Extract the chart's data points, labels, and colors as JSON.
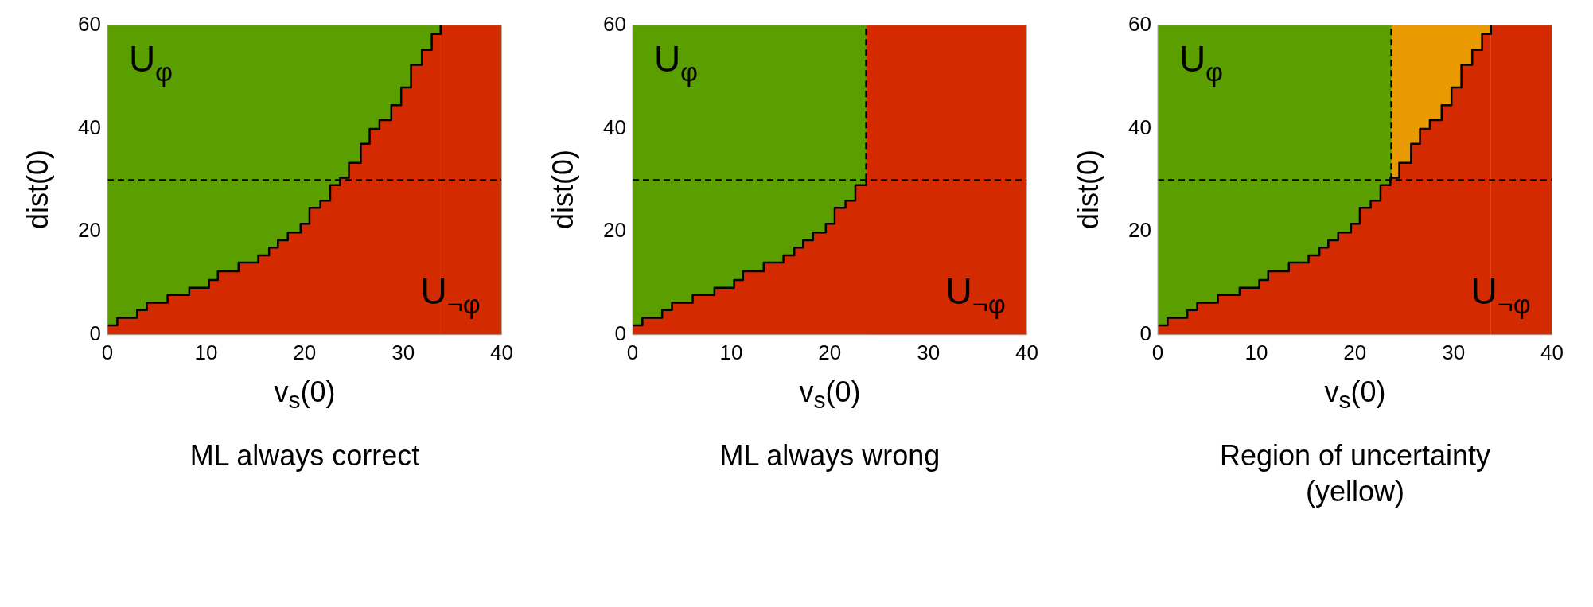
{
  "chart_data": [
    {
      "type": "area",
      "title": "ML always correct",
      "xlabel": "v$_{s}$(0)",
      "ylabel": "dist(0)",
      "xlim": [
        0,
        40
      ],
      "ylim": [
        0,
        60
      ],
      "xticks": [
        0,
        10,
        20,
        30,
        40
      ],
      "yticks": [
        0,
        20,
        40,
        60
      ],
      "legend": false,
      "bands": [
        {
          "axis": "x",
          "from": 0,
          "to": 40,
          "color": "#5a9e00"
        },
        {
          "axis": "x",
          "from": 33.8,
          "to": 40,
          "color": "#d42a00"
        }
      ],
      "series": [
        {
          "color": "#d42a00",
          "x": [
            0,
            1,
            3,
            4,
            6.1,
            8.3,
            10.3,
            11.2,
            13.3,
            15.3,
            16.4,
            17.3,
            18.3,
            19.6,
            20.5,
            21.6,
            22.6,
            23.6,
            24.5,
            25.7,
            26.6,
            27.6,
            28.8,
            29.8,
            30.8,
            31.9,
            32.9,
            33.8
          ],
          "values": [
            1.8,
            3.3,
            4.8,
            6.2,
            7.7,
            9.1,
            10.6,
            12.3,
            14,
            15.4,
            16.9,
            18.3,
            19.8,
            21.5,
            24.6,
            26,
            29,
            30.4,
            33.3,
            37,
            39.9,
            41.6,
            44.5,
            47.9,
            52.3,
            55.2,
            58.3,
            60
          ]
        },
        {
          "type": "step",
          "color": "#000000",
          "x": [
            0,
            1,
            3,
            4,
            6.1,
            8.3,
            10.3,
            11.2,
            13.3,
            15.3,
            16.4,
            17.3,
            18.3,
            19.6,
            20.5,
            21.6,
            22.6,
            23.6,
            24.5,
            25.7,
            26.6,
            27.6,
            28.8,
            29.8,
            30.8,
            31.9,
            32.9,
            33.8
          ],
          "values": [
            1.8,
            3.3,
            4.8,
            6.2,
            7.7,
            9.1,
            10.6,
            12.3,
            14,
            15.4,
            16.9,
            18.3,
            19.8,
            21.5,
            24.6,
            26,
            29,
            30.4,
            33.3,
            37,
            39.9,
            41.6,
            44.5,
            47.9,
            52.3,
            55.2,
            58.3,
            60
          ]
        }
      ],
      "ref_lines": [
        {
          "axis": "y",
          "value": 30,
          "color": "#000000",
          "line_style": "dashed"
        }
      ],
      "annotations": [
        "U$_{φ}$",
        "U$_{¬φ}$"
      ]
    },
    {
      "type": "area",
      "title": "ML always wrong",
      "xlabel": "v$_{s}$(0)",
      "ylabel": "dist(0)",
      "xlim": [
        0,
        40
      ],
      "ylim": [
        0,
        60
      ],
      "xticks": [
        0,
        10,
        20,
        30,
        40
      ],
      "yticks": [
        0,
        20,
        40,
        60
      ],
      "legend": false,
      "bands": [
        {
          "axis": "x",
          "from": 0,
          "to": 40,
          "color": "#5a9e00"
        },
        {
          "axis": "x",
          "from": 23.7,
          "to": 40,
          "color": "#d42a00"
        }
      ],
      "series": [
        {
          "color": "#d42a00",
          "x": [
            0,
            1,
            3,
            4,
            6.1,
            8.3,
            10.3,
            11.2,
            13.3,
            15.3,
            16.4,
            17.3,
            18.3,
            19.6,
            20.5,
            21.6,
            22.6,
            23.7,
            40
          ],
          "values": [
            1.8,
            3.3,
            4.8,
            6.2,
            7.7,
            9.1,
            10.6,
            12.3,
            14,
            15.4,
            16.9,
            18.3,
            19.8,
            21.5,
            24.6,
            26,
            29,
            30,
            30
          ]
        },
        {
          "type": "step",
          "color": "#000000",
          "x": [
            0,
            1,
            3,
            4,
            6.1,
            8.3,
            10.3,
            11.2,
            13.3,
            15.3,
            16.4,
            17.3,
            18.3,
            19.6,
            20.5,
            21.6,
            22.6,
            23.7
          ],
          "values": [
            1.8,
            3.3,
            4.8,
            6.2,
            7.7,
            9.1,
            10.6,
            12.3,
            14,
            15.4,
            16.9,
            18.3,
            19.8,
            21.5,
            24.6,
            26,
            29,
            30
          ]
        },
        {
          "type": "line",
          "color": "#000000",
          "line_style": "dashed",
          "x": [
            23.7,
            23.7
          ],
          "values": [
            30,
            60
          ]
        }
      ],
      "ref_lines": [
        {
          "axis": "y",
          "value": 30,
          "color": "#000000",
          "line_style": "dashed"
        }
      ],
      "annotations": [
        "U$_{φ}$",
        "U$_{¬φ}$"
      ]
    },
    {
      "type": "area",
      "title": "Region of uncertainty (yellow)",
      "xlabel": "v$_{s}$(0)",
      "ylabel": "dist(0)",
      "xlim": [
        0,
        40
      ],
      "ylim": [
        0,
        60
      ],
      "xticks": [
        0,
        10,
        20,
        30,
        40
      ],
      "yticks": [
        0,
        20,
        40,
        60
      ],
      "legend": false,
      "bands": [
        {
          "axis": "x",
          "from": 0,
          "to": 40,
          "color": "#5a9e00"
        },
        {
          "axis": "x",
          "from": 23.7,
          "to": 34,
          "color": "#e89a00"
        },
        {
          "axis": "x",
          "from": 33.8,
          "to": 40,
          "color": "#d42a00"
        }
      ],
      "series": [
        {
          "color": "#d42a00",
          "x": [
            0,
            1,
            3,
            4,
            6.1,
            8.3,
            10.3,
            11.2,
            13.3,
            15.3,
            16.4,
            17.3,
            18.3,
            19.6,
            20.5,
            21.6,
            22.6,
            23.6,
            24.5,
            25.7,
            26.6,
            27.6,
            28.8,
            29.8,
            30.8,
            31.9,
            32.9,
            33.8
          ],
          "values": [
            1.8,
            3.3,
            4.8,
            6.2,
            7.7,
            9.1,
            10.6,
            12.3,
            14,
            15.4,
            16.9,
            18.3,
            19.8,
            21.5,
            24.6,
            26,
            29,
            30.4,
            33.3,
            37,
            39.9,
            41.6,
            44.5,
            47.9,
            52.3,
            55.2,
            58.3,
            60
          ]
        },
        {
          "type": "step",
          "color": "#000000",
          "x": [
            0,
            1,
            3,
            4,
            6.1,
            8.3,
            10.3,
            11.2,
            13.3,
            15.3,
            16.4,
            17.3,
            18.3,
            19.6,
            20.5,
            21.6,
            22.6,
            23.6,
            24.5,
            25.7,
            26.6,
            27.6,
            28.8,
            29.8,
            30.8,
            31.9,
            32.9,
            33.8
          ],
          "values": [
            1.8,
            3.3,
            4.8,
            6.2,
            7.7,
            9.1,
            10.6,
            12.3,
            14,
            15.4,
            16.9,
            18.3,
            19.8,
            21.5,
            24.6,
            26,
            29,
            30.4,
            33.3,
            37,
            39.9,
            41.6,
            44.5,
            47.9,
            52.3,
            55.2,
            58.3,
            60
          ]
        },
        {
          "type": "line",
          "color": "#000000",
          "line_style": "dashed",
          "x": [
            23.7,
            23.7
          ],
          "values": [
            30,
            60
          ]
        }
      ],
      "ref_lines": [
        {
          "axis": "y",
          "value": 30,
          "color": "#000000",
          "line_style": "dashed"
        }
      ],
      "annotations": [
        "U$_{φ}$",
        "U$_{¬φ}$"
      ]
    }
  ]
}
